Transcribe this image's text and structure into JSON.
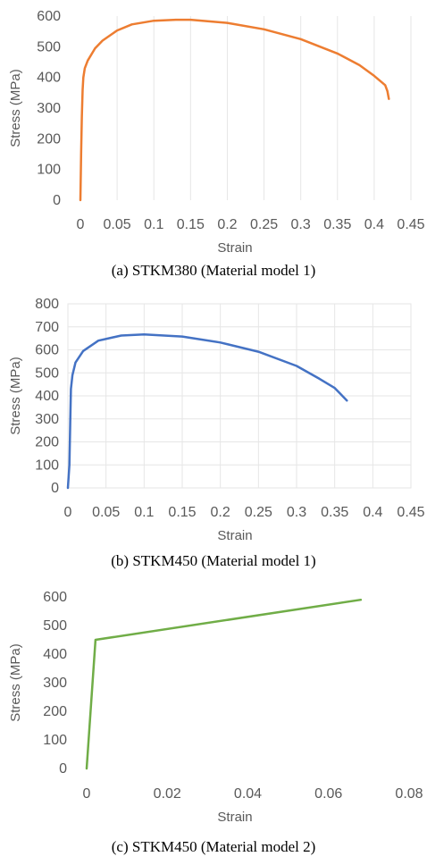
{
  "chart_data": [
    {
      "type": "line",
      "caption": "(a) STKM380 (Material model 1)",
      "xlabel": "Strain",
      "ylabel": "Stress (MPa)",
      "xlim": [
        0,
        0.45
      ],
      "ylim": [
        0,
        600
      ],
      "xticks": [
        0,
        0.05,
        0.1,
        0.15,
        0.2,
        0.25,
        0.3,
        0.35,
        0.4,
        0.45
      ],
      "xtick_labels": [
        "0",
        "0.05",
        "0.1",
        "0.15",
        "0.2",
        "0.25",
        "0.3",
        "0.35",
        "0.4",
        "0.45"
      ],
      "yticks": [
        0,
        100,
        200,
        300,
        400,
        500,
        600
      ],
      "ytick_labels": [
        "0",
        "100",
        "200",
        "300",
        "400",
        "500",
        "600"
      ],
      "grid": "vertical",
      "color": "#ED7D31",
      "series": [
        {
          "x": [
            0,
            0.001,
            0.002,
            0.003,
            0.004,
            0.006,
            0.01,
            0.02,
            0.03,
            0.05,
            0.07,
            0.1,
            0.13,
            0.15,
            0.2,
            0.25,
            0.3,
            0.35,
            0.38,
            0.4,
            0.415,
            0.418,
            0.42
          ],
          "y": [
            0,
            150,
            270,
            360,
            400,
            430,
            455,
            495,
            520,
            553,
            573,
            585,
            588,
            588,
            578,
            557,
            525,
            478,
            440,
            405,
            375,
            355,
            330
          ]
        }
      ]
    },
    {
      "type": "line",
      "caption": "(b) STKM450 (Material model 1)",
      "xlabel": "Strain",
      "ylabel": "Stress (MPa)",
      "xlim": [
        0,
        0.45
      ],
      "ylim": [
        0,
        800
      ],
      "xticks": [
        0,
        0.05,
        0.1,
        0.15,
        0.2,
        0.25,
        0.3,
        0.35,
        0.4,
        0.45
      ],
      "xtick_labels": [
        "0",
        "0.05",
        "0.1",
        "0.15",
        "0.2",
        "0.25",
        "0.3",
        "0.35",
        "0.4",
        "0.45"
      ],
      "yticks": [
        0,
        100,
        200,
        300,
        400,
        500,
        600,
        700,
        800
      ],
      "ytick_labels": [
        "0",
        "100",
        "200",
        "300",
        "400",
        "500",
        "600",
        "700",
        "800"
      ],
      "grid": "both",
      "color": "#4472C4",
      "series": [
        {
          "x": [
            0,
            0.002,
            0.003,
            0.004,
            0.006,
            0.01,
            0.02,
            0.04,
            0.07,
            0.1,
            0.15,
            0.2,
            0.25,
            0.3,
            0.33,
            0.35,
            0.366
          ],
          "y": [
            0,
            100,
            280,
            430,
            490,
            545,
            595,
            640,
            662,
            667,
            658,
            632,
            592,
            530,
            474,
            434,
            380
          ]
        }
      ]
    },
    {
      "type": "line",
      "caption": "(c) STKM450 (Material model 2)",
      "xlabel": "Strain",
      "ylabel": "Stress (MPa)",
      "xlim": [
        0,
        0.08
      ],
      "ylim": [
        0,
        600
      ],
      "xticks": [
        0,
        0.02,
        0.04,
        0.06,
        0.08
      ],
      "xtick_labels": [
        "0",
        "0.02",
        "0.04",
        "0.06",
        "0.08"
      ],
      "yticks": [
        0,
        100,
        200,
        300,
        400,
        500,
        600
      ],
      "ytick_labels": [
        "0",
        "100",
        "200",
        "300",
        "400",
        "500",
        "600"
      ],
      "grid": "none",
      "color": "#70AD47",
      "series": [
        {
          "x": [
            0,
            0.0022,
            0.068
          ],
          "y": [
            0,
            450,
            590
          ]
        }
      ]
    }
  ]
}
